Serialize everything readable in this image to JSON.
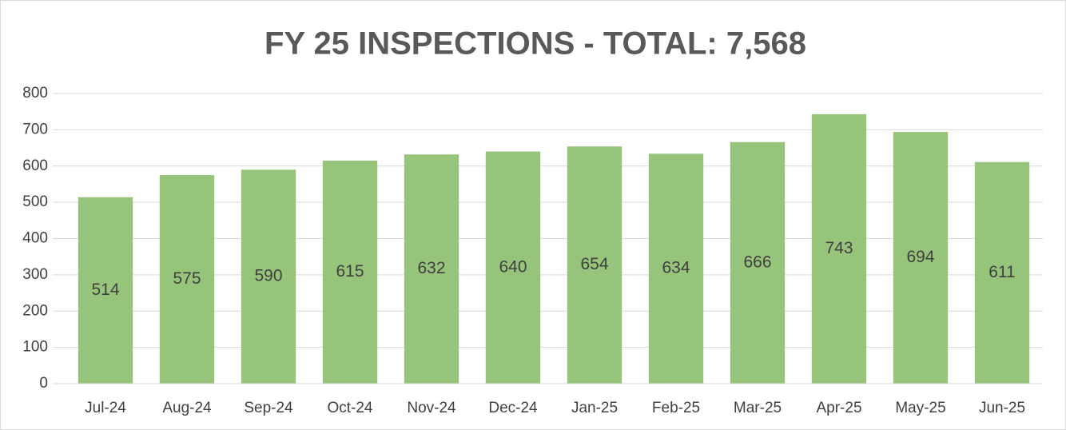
{
  "chart_data": {
    "type": "bar",
    "title": "FY 25 INSPECTIONS - TOTAL: 7,568",
    "categories": [
      "Jul-24",
      "Aug-24",
      "Sep-24",
      "Oct-24",
      "Nov-24",
      "Dec-24",
      "Jan-25",
      "Feb-25",
      "Mar-25",
      "Apr-25",
      "May-25",
      "Jun-25"
    ],
    "values": [
      514,
      575,
      590,
      615,
      632,
      640,
      654,
      634,
      666,
      743,
      694,
      611
    ],
    "color": "#97c47b",
    "ylim": [
      0,
      800
    ],
    "yticks": [
      0,
      100,
      200,
      300,
      400,
      500,
      600,
      700,
      800
    ],
    "grid": true
  }
}
